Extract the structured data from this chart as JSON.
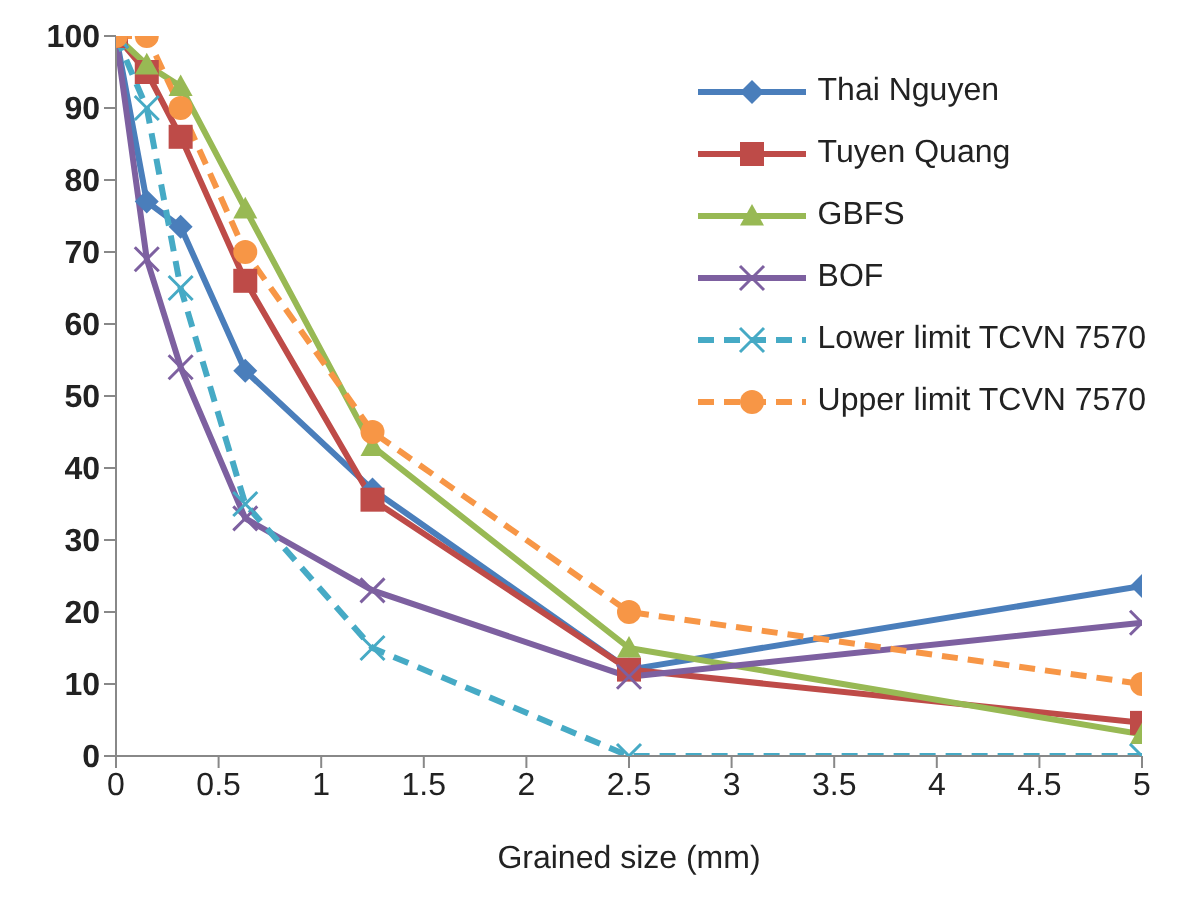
{
  "chart_data": {
    "type": "line",
    "xlabel": "Grained size (mm)",
    "x": [
      0,
      0.15,
      0.315,
      0.63,
      1.25,
      2.5,
      5
    ],
    "series": [
      {
        "name": "Thai Nguyen",
        "color": "#4a7ebb",
        "marker": "diamond",
        "values": [
          100,
          77,
          73.5,
          53.5,
          37,
          12,
          23.6
        ]
      },
      {
        "name": "Tuyen Quang",
        "color": "#be4b48",
        "marker": "square",
        "values": [
          100,
          95,
          86,
          66,
          35.6,
          12,
          4.6
        ]
      },
      {
        "name": "GBFS",
        "color": "#98b954",
        "marker": "triangle",
        "values": [
          100,
          96,
          93,
          76,
          43,
          15,
          3
        ]
      },
      {
        "name": "BOF",
        "color": "#7d60a0",
        "marker": "cross",
        "values": [
          100,
          69,
          54,
          33,
          23,
          11,
          18.5
        ]
      },
      {
        "name": "Lower limit TCVN 7570",
        "color": "#46aac5",
        "marker": "cross",
        "line_style": "dashed",
        "values": [
          100,
          90,
          65,
          35,
          15,
          0,
          0
        ]
      },
      {
        "name": "Upper limit TCVN 7570",
        "color": "#f79646",
        "marker": "circle",
        "line_style": "dashed",
        "values": [
          100,
          100,
          90,
          70,
          45,
          20,
          10
        ]
      }
    ],
    "xlim": [
      0,
      5
    ],
    "xticks": [
      0,
      0.5,
      1,
      1.5,
      2,
      2.5,
      3,
      3.5,
      4,
      4.5,
      5
    ],
    "ylim": [
      0,
      100
    ],
    "yticks": [
      0,
      10,
      20,
      30,
      40,
      50,
      60,
      70,
      80,
      90,
      100
    ],
    "grid": false,
    "legend": "top right"
  }
}
